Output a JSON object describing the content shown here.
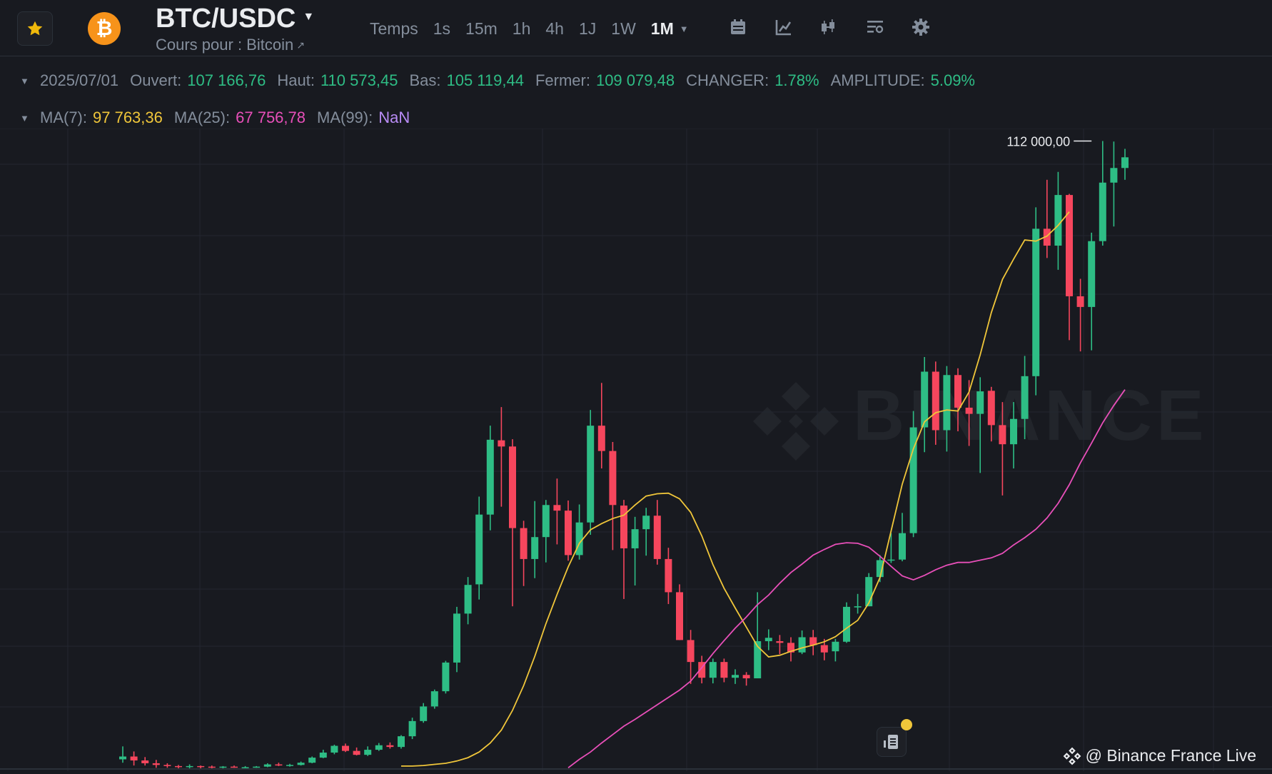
{
  "header": {
    "symbol": "BTC/USDC",
    "subtitle": "Cours pour : Bitcoin",
    "subtitle_link_icon": "external-link-icon",
    "timeframes": [
      "Temps",
      "1s",
      "15m",
      "1h",
      "4h",
      "1J",
      "1W"
    ],
    "active_timeframe": "1M",
    "tools": [
      "calendar-icon",
      "indicator-icon",
      "chart-type-icon",
      "layout-icon",
      "settings-icon"
    ]
  },
  "ohlc": {
    "date": "2025/07/01",
    "open_label": "Ouvert:",
    "open": "107 166,76",
    "high_label": "Haut:",
    "high": "110 573,45",
    "low_label": "Bas:",
    "low": "105 119,44",
    "close_label": "Fermer:",
    "close": "109 079,48",
    "change_label": "CHANGER:",
    "change": "1.78%",
    "amplitude_label": "AMPLITUDE:",
    "amplitude": "5.09%"
  },
  "ma": {
    "ma7_label": "MA(7):",
    "ma7": "97 763,36",
    "ma25_label": "MA(25):",
    "ma25": "67 756,78",
    "ma99_label": "MA(99):",
    "ma99": "NaN"
  },
  "colors": {
    "up": "#2ebd85",
    "down": "#f6465d",
    "ma7": "#f0c63a",
    "ma25": "#e84fb9",
    "ma99": "#b98cf6"
  },
  "chart_data": {
    "type": "candlestick",
    "high_marker": "112 000,00",
    "ylim": [
      0,
      116000
    ],
    "candles": [
      [
        2.1,
        2.6,
        4.4,
        1.5
      ],
      [
        2.6,
        1.9,
        3.5,
        1.0
      ],
      [
        1.9,
        1.4,
        2.5,
        1.0
      ],
      [
        1.4,
        1.1,
        2.0,
        0.6
      ],
      [
        1.1,
        0.9,
        1.4,
        0.6
      ],
      [
        0.9,
        0.8,
        1.1,
        0.5
      ],
      [
        0.8,
        0.9,
        1.2,
        0.5
      ],
      [
        0.9,
        0.8,
        1.0,
        0.5
      ],
      [
        0.8,
        0.7,
        1.0,
        0.5
      ],
      [
        0.7,
        0.8,
        0.9,
        0.5
      ],
      [
        0.8,
        0.7,
        1.0,
        0.6
      ],
      [
        0.7,
        0.7,
        0.9,
        0.6
      ],
      [
        0.7,
        0.8,
        0.9,
        0.6
      ],
      [
        0.8,
        1.2,
        1.4,
        0.7
      ],
      [
        1.2,
        1.0,
        1.5,
        0.9
      ],
      [
        1.0,
        1.1,
        1.3,
        0.8
      ],
      [
        1.1,
        1.5,
        1.7,
        1.0
      ],
      [
        1.5,
        2.4,
        2.6,
        1.4
      ],
      [
        2.4,
        3.3,
        3.8,
        2.3
      ],
      [
        3.3,
        4.5,
        4.7,
        3.0
      ],
      [
        4.5,
        3.6,
        4.9,
        3.4
      ],
      [
        3.6,
        2.9,
        4.2,
        2.8
      ],
      [
        2.9,
        3.8,
        4.4,
        2.7
      ],
      [
        3.8,
        4.6,
        5.0,
        3.6
      ],
      [
        4.6,
        4.3,
        5.1,
        4.0
      ],
      [
        4.3,
        6.2,
        6.4,
        4.0
      ],
      [
        6.2,
        8.9,
        9.5,
        5.7
      ],
      [
        8.9,
        11.5,
        12.1,
        8.6
      ],
      [
        11.5,
        14.2,
        14.5,
        11.1
      ],
      [
        14.2,
        19.3,
        19.6,
        13.8
      ],
      [
        19.3,
        28.0,
        29.2,
        17.6
      ],
      [
        28.0,
        33.1,
        34.5,
        26.1
      ],
      [
        33.2,
        45.6,
        48.8,
        30.5
      ],
      [
        45.6,
        58.9,
        61.4,
        42.8
      ],
      [
        58.8,
        57.7,
        64.7,
        47.0
      ],
      [
        57.7,
        43.2,
        59.0,
        29.3
      ],
      [
        43.2,
        37.7,
        44.5,
        32.9
      ],
      [
        37.7,
        41.6,
        48.0,
        34.3
      ],
      [
        41.6,
        47.3,
        48.2,
        37.1
      ],
      [
        47.3,
        46.3,
        52.0,
        40.3
      ],
      [
        46.3,
        38.4,
        48.1,
        37.4
      ],
      [
        38.4,
        44.2,
        47.4,
        37.6
      ],
      [
        44.2,
        61.4,
        64.2,
        42.0
      ],
      [
        61.4,
        56.9,
        69.0,
        53.8
      ],
      [
        56.9,
        47.3,
        58.5,
        39.3
      ],
      [
        47.2,
        39.6,
        48.2,
        30.6
      ],
      [
        39.6,
        43.0,
        45.2,
        33.0
      ],
      [
        43.0,
        45.4,
        46.8,
        38.3
      ],
      [
        45.4,
        37.7,
        48.2,
        36.7
      ],
      [
        37.7,
        31.8,
        39.7,
        29.7
      ],
      [
        31.8,
        23.3,
        33.2,
        23.3
      ],
      [
        23.3,
        19.4,
        25.1,
        15.5
      ],
      [
        19.4,
        16.6,
        20.5,
        15.6
      ],
      [
        16.6,
        19.4,
        20.0,
        15.6
      ],
      [
        19.4,
        16.6,
        20.0,
        15.8
      ],
      [
        16.6,
        17.1,
        18.1,
        15.5
      ],
      [
        17.1,
        16.5,
        17.6,
        15.2
      ],
      [
        16.5,
        23.1,
        31.8,
        16.5
      ],
      [
        23.1,
        23.7,
        25.2,
        21.5
      ],
      [
        23.1,
        22.8,
        24.2,
        20.8
      ],
      [
        22.8,
        21.1,
        23.8,
        19.5
      ],
      [
        21.1,
        23.8,
        25.0,
        20.8
      ],
      [
        23.8,
        22.4,
        25.1,
        20.6
      ],
      [
        22.4,
        21.1,
        23.5,
        19.7
      ],
      [
        21.3,
        23.0,
        23.5,
        19.5
      ],
      [
        23.0,
        29.2,
        30.0,
        22.8
      ],
      [
        29.1,
        29.3,
        31.5,
        28.0
      ],
      [
        29.3,
        34.5,
        35.2,
        29.3
      ],
      [
        34.5,
        37.5,
        38.4,
        33.6
      ],
      [
        37.6,
        37.6,
        42.3,
        37.0
      ],
      [
        37.6,
        42.3,
        45.9,
        37.3
      ],
      [
        42.3,
        61.1,
        64.0,
        41.6
      ],
      [
        61.1,
        71.0,
        73.6,
        56.7
      ],
      [
        71.0,
        60.6,
        72.8,
        58.0
      ],
      [
        60.6,
        70.4,
        72.0,
        56.8
      ],
      [
        70.4,
        64.6,
        71.6,
        60.4
      ],
      [
        64.6,
        63.5,
        69.5,
        57.8
      ],
      [
        63.5,
        67.5,
        70.0,
        53.0
      ],
      [
        67.6,
        61.5,
        68.3,
        58.6
      ],
      [
        61.5,
        58.1,
        65.6,
        49.0
      ],
      [
        58.1,
        62.6,
        65.6,
        53.8
      ],
      [
        62.6,
        70.2,
        73.8,
        59.0
      ],
      [
        70.2,
        96.4,
        100.2,
        66.8
      ],
      [
        96.4,
        93.4,
        105.1,
        91.2
      ],
      [
        93.4,
        102.4,
        106.5,
        89.1
      ],
      [
        102.4,
        84.4,
        102.6,
        76.6
      ],
      [
        84.4,
        82.5,
        87.5,
        74.6
      ],
      [
        82.5,
        94.2,
        95.7,
        74.8
      ],
      [
        94.2,
        104.6,
        112.0,
        93.4
      ],
      [
        104.6,
        107.2,
        111.9,
        96.8
      ],
      [
        107.2,
        109.1,
        110.6,
        105.1
      ]
    ],
    "ma7": [
      0.9,
      0.9,
      1.0,
      1.2,
      1.4,
      1.8,
      2.4,
      3.4,
      5.0,
      7.3,
      10.8,
      15.2,
      20.4,
      26.2,
      31.4,
      36.3,
      40.5,
      42.9,
      44.0,
      44.9,
      45.5,
      47.3,
      48.9,
      49.3,
      49.4,
      48.4,
      46.0,
      41.8,
      36.7,
      32.5,
      29.0,
      25.6,
      22.2,
      20.3,
      20.6,
      21.3,
      21.9,
      22.4,
      23.0,
      23.9,
      25.4,
      26.8,
      29.9,
      34.4,
      42.7,
      51.0,
      57.3,
      62.1,
      63.7,
      64.2,
      64.0,
      67.4,
      74.0,
      81.5,
      87.4,
      91.0,
      94.4,
      94.2,
      95.1,
      97.0,
      99.4
    ],
    "ma7_start": 25,
    "ma25": [
      0.6,
      2.1,
      3.4,
      5.0,
      6.5,
      8.0,
      9.2,
      10.5,
      11.8,
      13.1,
      14.4,
      16.0,
      18.4,
      20.9,
      23.2,
      25.4,
      27.4,
      29.6,
      31.3,
      33.4,
      35.3,
      36.8,
      38.4,
      39.4,
      40.3,
      40.6,
      40.5,
      39.8,
      38.2,
      36.4,
      34.7,
      34.0,
      34.8,
      35.8,
      36.6,
      37.1,
      37.1,
      37.5,
      37.9,
      38.7,
      40.2,
      41.5,
      43.0,
      45.0,
      47.6,
      50.9,
      54.8,
      58.3,
      61.9,
      65.0,
      67.8
    ],
    "ma25_start": 40
  }
}
